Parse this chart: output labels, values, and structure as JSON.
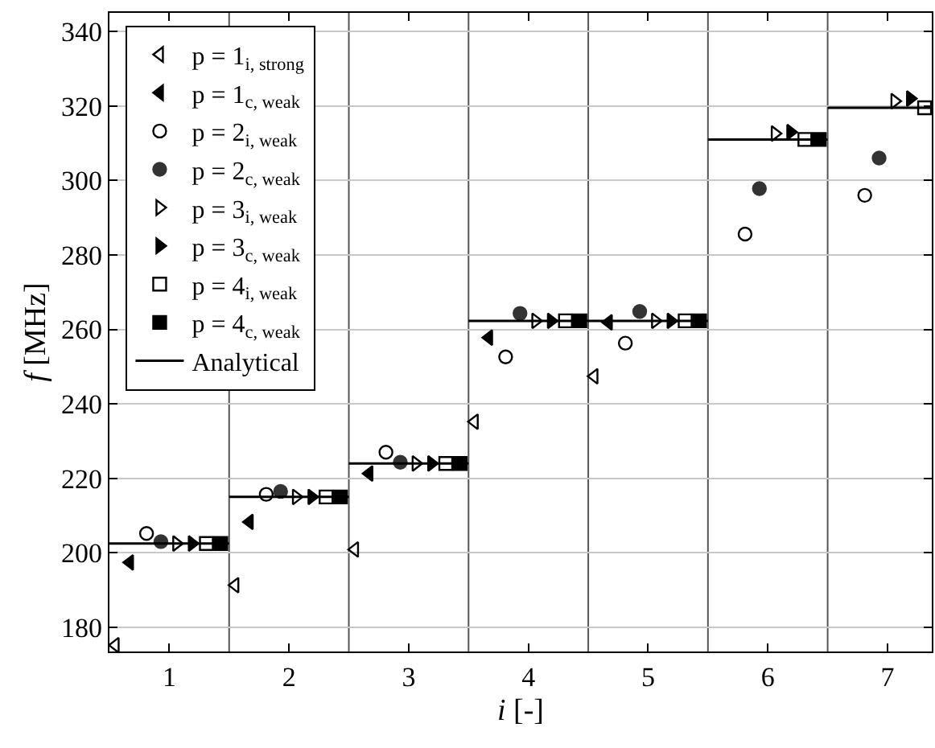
{
  "chart_data": {
    "type": "scatter",
    "xlabel": "i [-]",
    "ylabel": "f [MHz]",
    "xlim": [
      0.5,
      7.37
    ],
    "ylim": [
      173.5,
      345
    ],
    "xticks": [
      1,
      2,
      3,
      4,
      5,
      6,
      7
    ],
    "yticks": [
      180,
      200,
      220,
      240,
      260,
      280,
      300,
      320,
      340
    ],
    "grid": "y",
    "legend": "top left",
    "ref_lines": [
      {
        "axis": "x",
        "value": 1.5,
        "color": "#555555"
      },
      {
        "axis": "x",
        "value": 2.5,
        "color": "#555555"
      },
      {
        "axis": "x",
        "value": 3.5,
        "color": "#555555"
      },
      {
        "axis": "x",
        "value": 4.5,
        "color": "#555555"
      },
      {
        "axis": "x",
        "value": 5.5,
        "color": "#555555"
      },
      {
        "axis": "x",
        "value": 6.5,
        "color": "#555555"
      }
    ],
    "series": [
      {
        "name": "p = 1$_{i, strong}$",
        "color": "#000000",
        "marker": "triangle-left-open",
        "x": [
          0.55,
          1.55,
          2.55,
          3.55,
          4.55
        ],
        "values": [
          175.2,
          191.3,
          200.9,
          235.2,
          247.4
        ]
      },
      {
        "name": "p = 1$_{c, weak}$",
        "color": "#000000",
        "marker": "triangle-left",
        "x": [
          0.67,
          1.67,
          2.67,
          3.67,
          4.67
        ],
        "values": [
          197.4,
          208.3,
          221.3,
          257.8,
          261.9
        ]
      },
      {
        "name": "p = 2$_{i, weak}$",
        "color": "#000000",
        "marker": "circle-open",
        "x": [
          0.81,
          1.81,
          2.81,
          3.81,
          4.81,
          5.81,
          6.81
        ],
        "values": [
          205.2,
          215.7,
          227,
          252.6,
          256.3,
          285.6,
          296
        ]
      },
      {
        "name": "p = 2$_{c, weak}$",
        "color": "#333333",
        "marker": "circle",
        "x": [
          0.93,
          1.93,
          2.93,
          3.93,
          4.93,
          5.93,
          6.93
        ],
        "values": [
          203,
          216.5,
          224.3,
          264.3,
          264.8,
          297.8,
          306
        ]
      },
      {
        "name": "p = 3$_{i, weak}$",
        "color": "#000000",
        "marker": "triangle-right-open",
        "x": [
          1.06,
          2.06,
          3.06,
          4.06,
          5.06,
          6.06,
          7.06
        ],
        "values": [
          202.5,
          215,
          224,
          262.3,
          262.3,
          312.6,
          321.3
        ]
      },
      {
        "name": "p = 3$_{c, weak}$",
        "color": "#000000",
        "marker": "triangle-right",
        "x": [
          1.19,
          2.19,
          3.19,
          4.19,
          5.19,
          6.19,
          7.19
        ],
        "values": [
          202.5,
          215,
          224,
          262.3,
          262.3,
          313,
          322
        ]
      },
      {
        "name": "p = 4$_{i, weak}$",
        "color": "#000000",
        "marker": "square-open",
        "x": [
          1.31,
          2.31,
          3.31,
          4.31,
          5.31,
          6.31,
          7.31
        ],
        "values": [
          202.5,
          215,
          224,
          262.3,
          262.3,
          311,
          319.5
        ]
      },
      {
        "name": "p = 4$_{c, weak}$",
        "color": "#000000",
        "marker": "square",
        "x": [
          1.43,
          2.43,
          3.43,
          4.43,
          5.43,
          6.43
        ],
        "values": [
          202.5,
          215,
          224,
          262.3,
          262.3,
          311
        ]
      },
      {
        "name": "Analytical",
        "type": "line",
        "color": "#000000",
        "marker": "none",
        "x": [
          0.5,
          1.5,
          1.5,
          2.5,
          2.5,
          3.5,
          3.5,
          4.5,
          4.5,
          5.5,
          5.5,
          6.5,
          6.5,
          7.37
        ],
        "values": [
          202.5,
          202.5,
          215,
          215,
          224,
          224,
          262.3,
          262.3,
          262.3,
          262.3,
          311,
          311,
          319.5,
          319.5
        ]
      }
    ]
  }
}
